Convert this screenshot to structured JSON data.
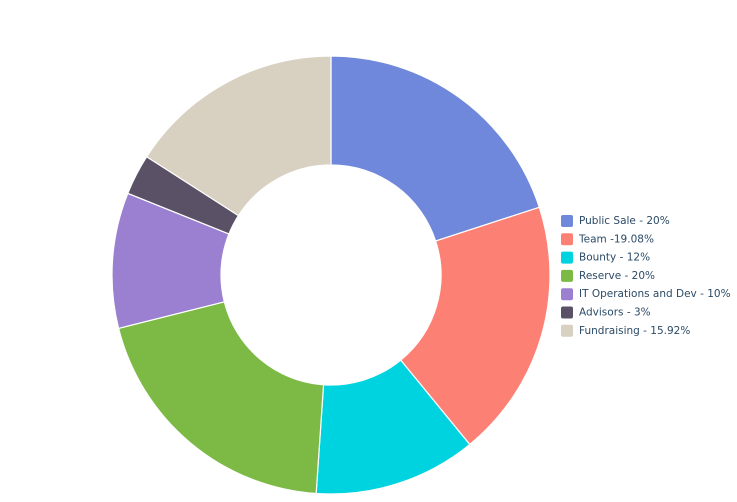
{
  "chart_data": {
    "type": "donut",
    "categories": [
      "Public Sale - 20%",
      "Team -19.08%",
      "Bounty - 12%",
      "Reserve - 20%",
      "IT Operations and Dev - 10%",
      "Advisors - 3%",
      "Fundraising - 15.92%"
    ],
    "values": [
      20,
      19.08,
      12,
      20,
      10,
      3,
      15.92
    ],
    "colors": [
      "#6f88db",
      "#fd8075",
      "#00d3e0",
      "#7cba45",
      "#9b7fd0",
      "#5b5166",
      "#d8d0c1"
    ],
    "legend": "right"
  }
}
